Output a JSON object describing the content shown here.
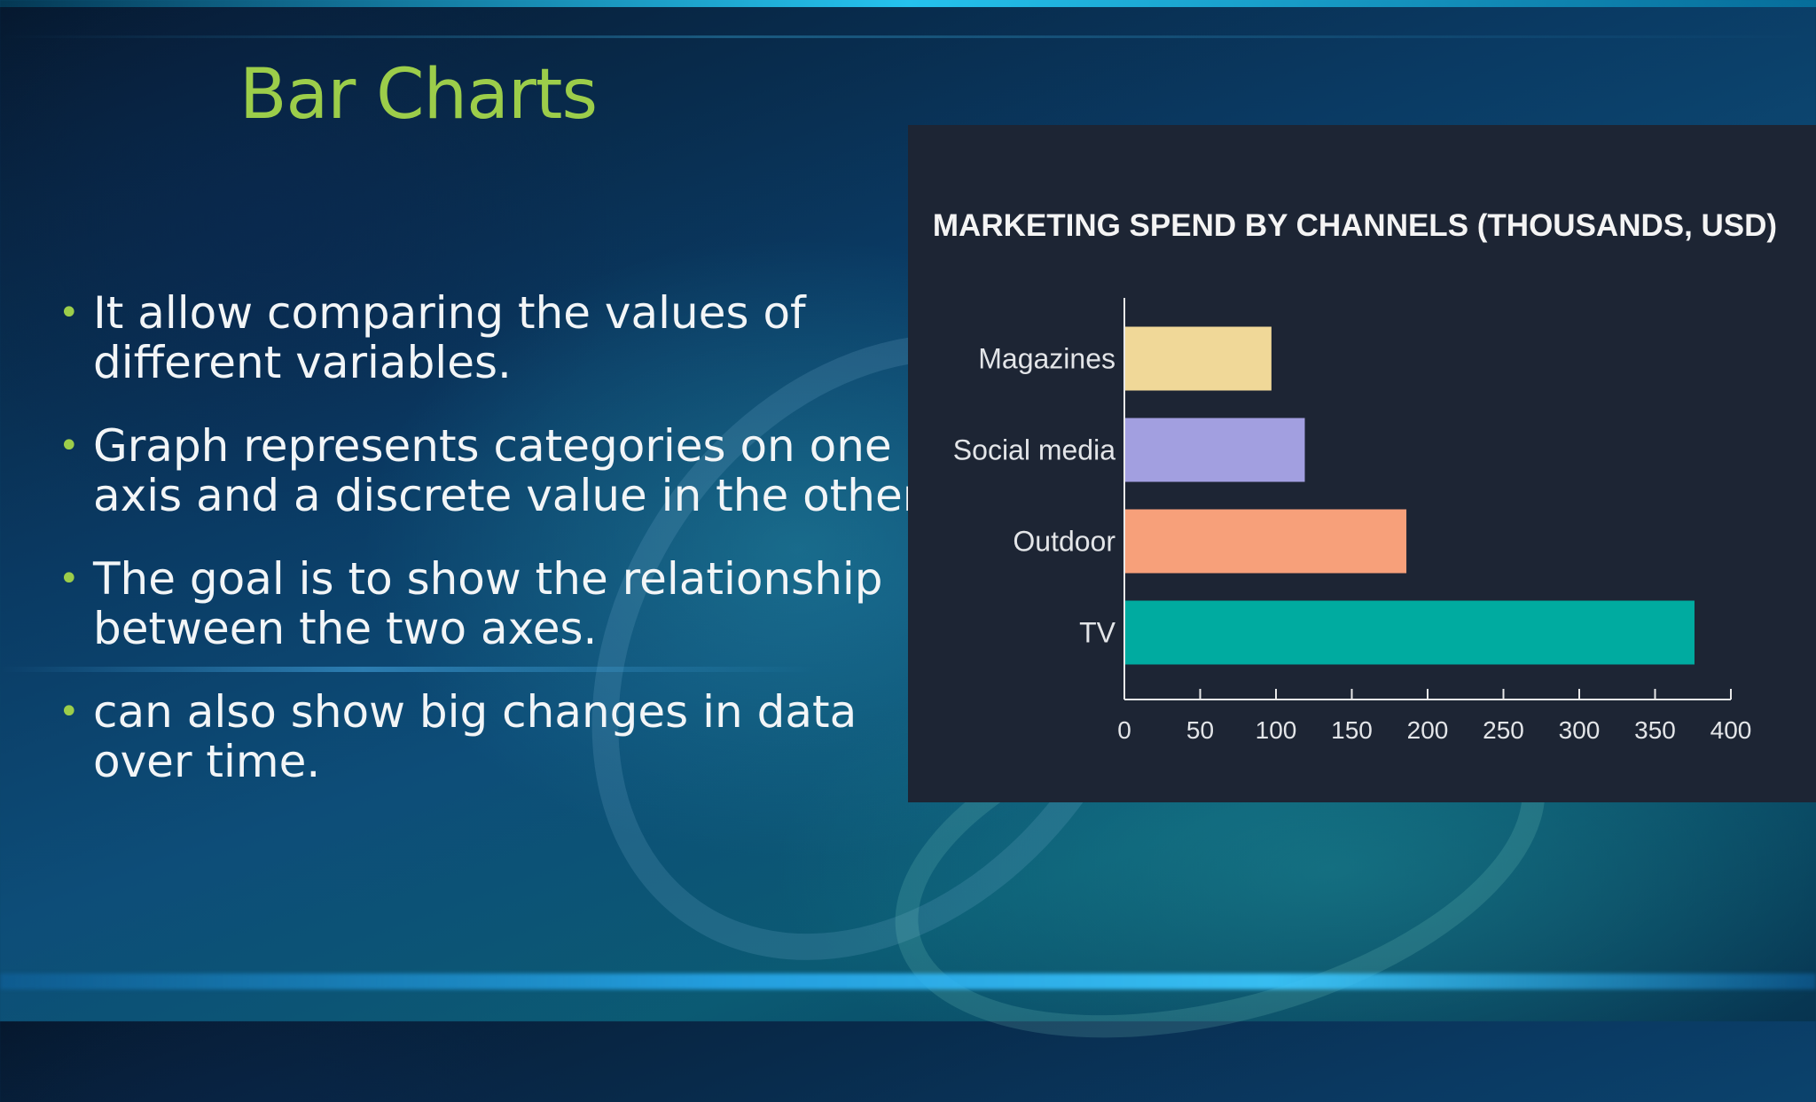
{
  "slide": {
    "title": "Bar Charts",
    "bullets": [
      "It allow comparing the values of different variables.",
      "Graph represents categories on one axis and a discrete value in the other.",
      "The goal is to show the relationship between the two axes.",
      "can also show big changes in data over time."
    ],
    "colors": {
      "title": "#9ccd4a",
      "bullet_marker": "#9ccd4a",
      "panel_bg": "#1d2534"
    }
  },
  "chart_data": {
    "type": "bar",
    "orientation": "horizontal",
    "title": "MARKETING SPEND BY CHANNELS (THOUSANDS, USD)",
    "categories": [
      "Magazines",
      "Social media",
      "Outdoor",
      "TV"
    ],
    "values": [
      97,
      119,
      186,
      376
    ],
    "colors": [
      "#f0d898",
      "#a29fe0",
      "#f7a07a",
      "#00aba0"
    ],
    "xlim": [
      0,
      400
    ],
    "xticks": [
      0,
      50,
      100,
      150,
      200,
      250,
      300,
      350,
      400
    ],
    "grid": false,
    "legend": "none"
  }
}
